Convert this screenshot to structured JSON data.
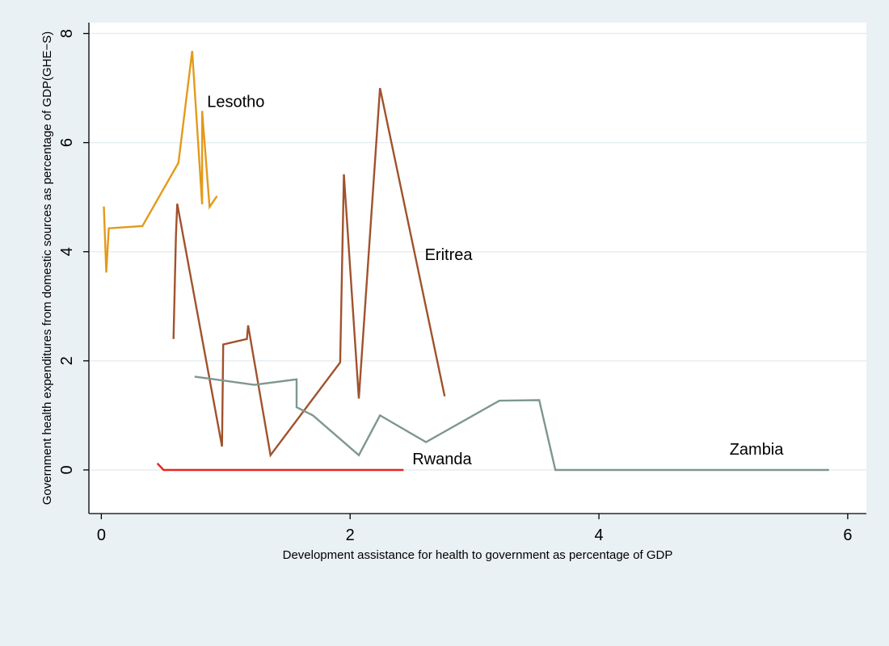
{
  "chart_data": {
    "type": "line",
    "title": "",
    "xlabel": "Development assistance for health to government as percentage of GDP",
    "ylabel": "Government health expenditures from domestic sources as percentage of GDP(GHE−S)",
    "xlim": [
      -0.1,
      6.15
    ],
    "ylim": [
      -0.8,
      8.2
    ],
    "xticks": [
      0,
      2,
      4,
      6
    ],
    "yticks": [
      0,
      2,
      4,
      6,
      8
    ],
    "grid": "horizontal",
    "legend": "none",
    "series": [
      {
        "name": "Lesotho",
        "color": "#e39a1b",
        "label_at": [
          0.85,
          6.65
        ],
        "points": [
          [
            0.02,
            4.83
          ],
          [
            0.04,
            3.62
          ],
          [
            0.06,
            4.43
          ],
          [
            0.33,
            4.47
          ],
          [
            0.62,
            5.63
          ],
          [
            0.73,
            7.68
          ],
          [
            0.81,
            4.87
          ],
          [
            0.81,
            6.58
          ],
          [
            0.87,
            4.82
          ],
          [
            0.93,
            5.02
          ]
        ]
      },
      {
        "name": "Eritrea",
        "color": "#a0522d",
        "label_at": [
          2.6,
          3.85
        ],
        "points": [
          [
            0.58,
            2.4
          ],
          [
            0.6,
            4.3
          ],
          [
            0.61,
            4.88
          ],
          [
            0.97,
            0.43
          ],
          [
            0.98,
            2.3
          ],
          [
            1.17,
            2.4
          ],
          [
            1.18,
            2.65
          ],
          [
            1.36,
            0.27
          ],
          [
            1.92,
            1.97
          ],
          [
            1.95,
            5.42
          ],
          [
            2.07,
            1.31
          ],
          [
            2.24,
            7.0
          ],
          [
            2.76,
            1.35
          ]
        ]
      },
      {
        "name": "Zambia",
        "color": "#7e978e",
        "label_at": [
          5.05,
          0.28
        ],
        "points": [
          [
            0.75,
            1.71
          ],
          [
            1.23,
            1.56
          ],
          [
            1.57,
            1.66
          ],
          [
            1.57,
            1.15
          ],
          [
            1.7,
            1.0
          ],
          [
            2.07,
            0.27
          ],
          [
            2.24,
            1.0
          ],
          [
            2.61,
            0.51
          ],
          [
            3.2,
            1.27
          ],
          [
            3.52,
            1.28
          ],
          [
            3.65,
            0.0
          ],
          [
            5.85,
            0.0
          ]
        ]
      },
      {
        "name": "Rwanda",
        "color": "#e8231f",
        "label_at": [
          2.5,
          0.1
        ],
        "points": [
          [
            0.45,
            0.12
          ],
          [
            0.5,
            0.0
          ],
          [
            2.43,
            0.0
          ]
        ]
      }
    ]
  }
}
